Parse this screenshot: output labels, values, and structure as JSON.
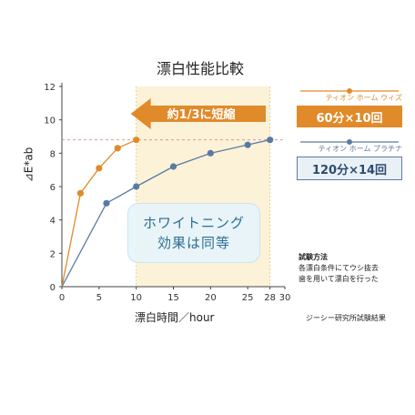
{
  "chart_data": {
    "type": "line",
    "title": "漂白性能比較",
    "xlabel": "漂白時間／hour",
    "ylabel": "⊿E*ab",
    "xlim": [
      0,
      30
    ],
    "ylim": [
      0,
      12
    ],
    "x_ticks": [
      0,
      5,
      10,
      15,
      20,
      25,
      28,
      30
    ],
    "y_ticks": [
      0,
      2,
      4,
      6,
      8,
      10,
      12
    ],
    "series": [
      {
        "name": "ティオン ホーム ウィズ",
        "badge": "60分×10回",
        "color": "#e08a2a",
        "x": [
          0,
          2.5,
          5,
          7.5,
          10
        ],
        "y": [
          0,
          5.6,
          7.1,
          8.3,
          8.8
        ]
      },
      {
        "name": "ティオン ホーム プラチナ",
        "badge": "120分×14回",
        "color": "#5b7aa3",
        "x": [
          0,
          6,
          10,
          15,
          20,
          25,
          28
        ],
        "y": [
          0,
          5.0,
          6.0,
          7.2,
          8.0,
          8.5,
          8.8
        ]
      }
    ],
    "reference_line_y": 8.8,
    "shaded_x_range": [
      10,
      28
    ],
    "arrow_label": "約1/3に短縮",
    "callout": [
      "ホワイトニング",
      "効果は同等"
    ],
    "grid": false,
    "legend_position": "right"
  },
  "notes": {
    "method_title": "試験方法",
    "method_lines": [
      "各漂白条件にてウシ抜去",
      "歯を用いて漂白を行った"
    ],
    "source": "ジーシー研究所試験結果"
  },
  "colors": {
    "orange": "#e08a2a",
    "blue": "#5b7aa3",
    "shade": "#fbf2d8",
    "reference": "#d98a8a"
  }
}
